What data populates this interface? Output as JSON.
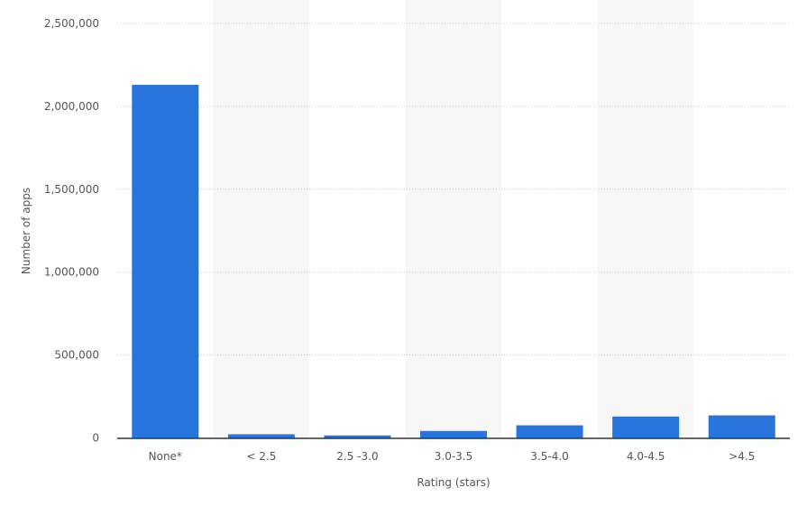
{
  "chart_data": {
    "type": "bar",
    "title": "",
    "xlabel": "Rating (stars)",
    "ylabel": "Number of apps",
    "categories": [
      "None*",
      "< 2.5",
      "2.5 -3.0",
      "3.0-3.5",
      "3.5-4.0",
      "4.0-4.5",
      ">4.5"
    ],
    "values": [
      2130000,
      22000,
      15000,
      42000,
      76000,
      129000,
      136000
    ],
    "ylim": [
      0,
      2500000
    ],
    "yticks": [
      0,
      500000,
      1000000,
      1500000,
      2000000,
      2500000
    ],
    "ytick_labels": [
      "0",
      "500,000",
      "1,000,000",
      "1,500,000",
      "2,000,000",
      "2,500,000"
    ],
    "grid": true,
    "legend": "none",
    "colors": {
      "bar": "#2876dd",
      "band": "#f7f7f7",
      "grid": "#c8c8c8",
      "axis": "#333333"
    }
  }
}
